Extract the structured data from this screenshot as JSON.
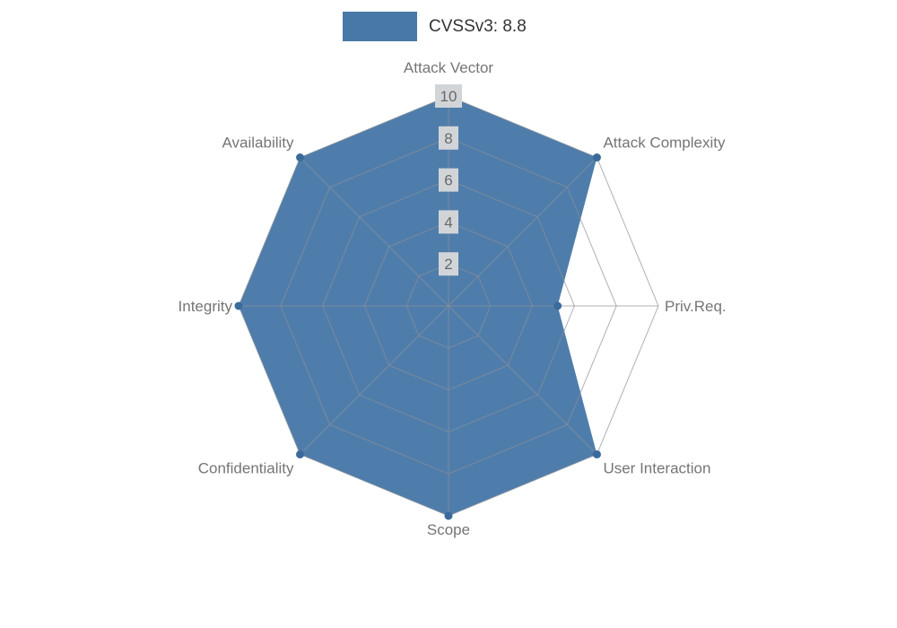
{
  "legend": {
    "label": "CVSSv3: 8.8",
    "swatch_color": "#4878a8"
  },
  "chart_data": {
    "type": "radar",
    "title": "CVSSv3: 8.8",
    "axes": [
      "Attack Vector",
      "Attack Complexity",
      "Priv.Req.",
      "User Interaction",
      "Scope",
      "Confidentiality",
      "Integrity",
      "Availability"
    ],
    "series": [
      {
        "name": "CVSSv3: 8.8",
        "values": [
          10,
          10,
          5.2,
          10,
          10,
          10,
          10,
          10
        ],
        "color": "#4878a8"
      }
    ],
    "radial_ticks": [
      2,
      4,
      6,
      8,
      10
    ],
    "max": 10,
    "grid": true,
    "legend_position": "top-center"
  },
  "colors": {
    "fill": "#4878a8",
    "dot": "#3b6b9b",
    "grid": "#8a9097",
    "axis_label": "#757575",
    "tick_text": "#686868",
    "tick_bg": "#d2d5d8",
    "legend_text": "#333333"
  }
}
